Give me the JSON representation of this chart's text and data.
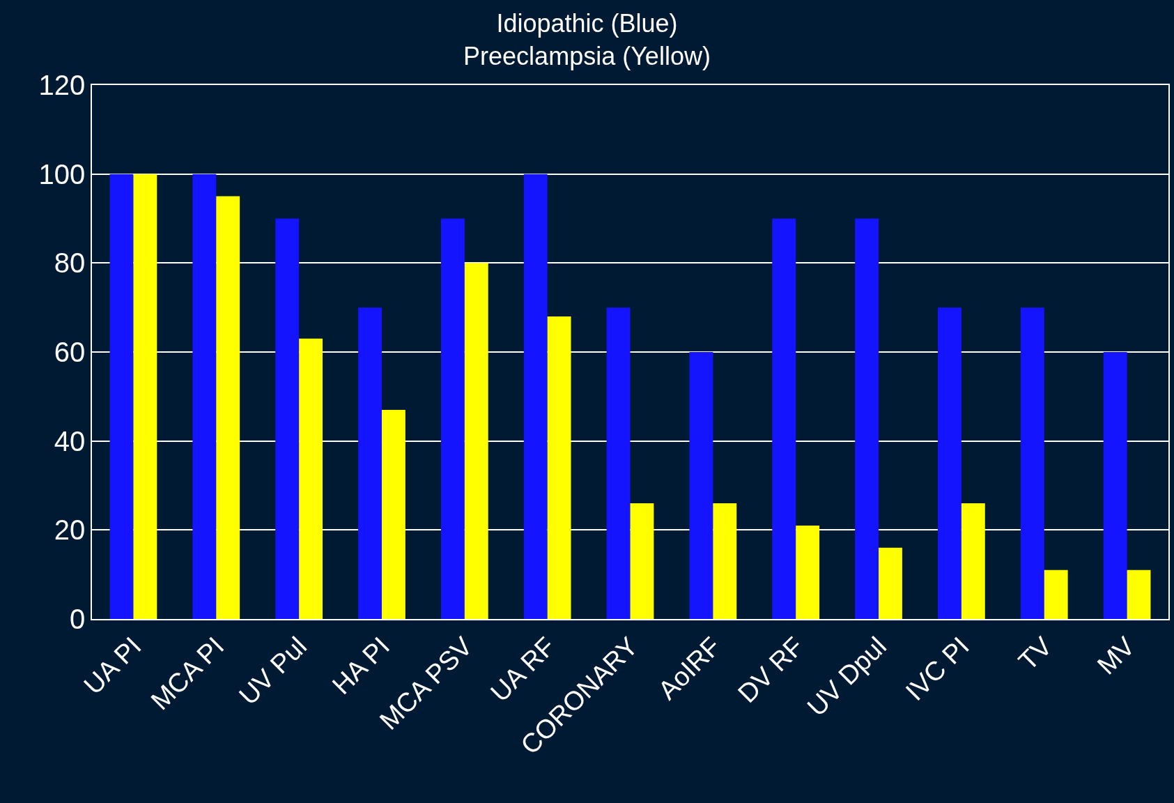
{
  "chart_data": {
    "type": "bar",
    "title": "Idiopathic (Blue)\nPreeclampsia (Yellow)",
    "categories": [
      "UA PI",
      "MCA PI",
      "UV Pul",
      "HA PI",
      "MCA PSV",
      "UA RF",
      "CORONARY",
      "AoIRF",
      "DV RF",
      "UV Dpul",
      "IVC PI",
      "TV",
      "MV"
    ],
    "series": [
      {
        "color": "#1414ff",
        "values": [
          100,
          100,
          90,
          70,
          90,
          100,
          70,
          60,
          90,
          90,
          70,
          70,
          60
        ]
      },
      {
        "color": "#ffff00",
        "values": [
          100,
          95,
          63,
          47,
          80,
          68,
          26,
          26,
          21,
          16,
          26,
          11,
          11
        ]
      }
    ],
    "ylim": [
      0,
      120
    ],
    "yticks": [
      0,
      20,
      40,
      60,
      80,
      100,
      120
    ],
    "grid": "y"
  }
}
